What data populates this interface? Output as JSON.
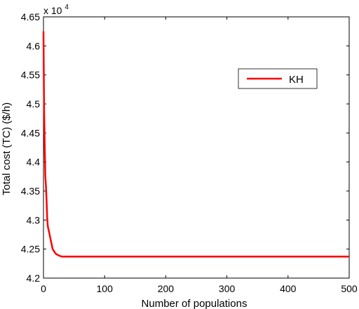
{
  "chart_data": {
    "type": "line",
    "title": "",
    "xlabel": "Number of populations",
    "ylabel": "Total cost (TC) ($/h)",
    "xlim": [
      0,
      500
    ],
    "ylim": [
      42000,
      46500
    ],
    "x_ticks": [
      "0",
      "100",
      "200",
      "300",
      "400",
      "500"
    ],
    "y_ticks": [
      "4.2",
      "4.25",
      "4.3",
      "4.35",
      "4.4",
      "4.45",
      "4.5",
      "4.55",
      "4.6",
      "4.65"
    ],
    "y_multiplier_text": "x 10",
    "y_multiplier_exp": "4",
    "grid": false,
    "legend_position": "top-right",
    "series": [
      {
        "name": "KH",
        "color": "#ff0000",
        "x": [
          0,
          1,
          2,
          3,
          4,
          5,
          6,
          7,
          8,
          10,
          12,
          15,
          20,
          25,
          30,
          50,
          100,
          200,
          300,
          400,
          500
        ],
        "y": [
          46250,
          44900,
          44300,
          43750,
          43600,
          43350,
          43050,
          42900,
          42850,
          42750,
          42650,
          42500,
          42420,
          42390,
          42370,
          42370,
          42370,
          42370,
          42370,
          42370,
          42370
        ]
      }
    ]
  }
}
